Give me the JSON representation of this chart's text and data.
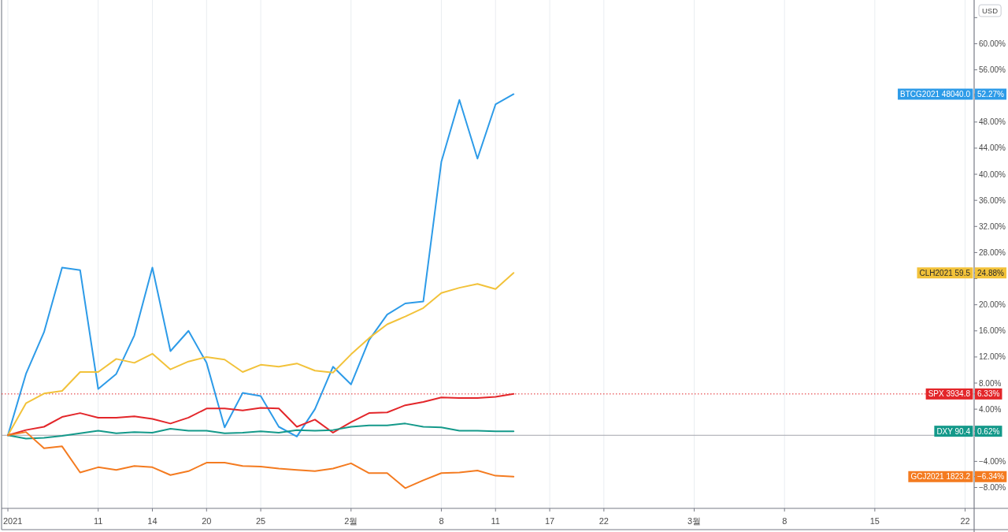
{
  "chart_data": {
    "type": "line",
    "ylabel": "USD",
    "grid": "x",
    "legend": "right",
    "categories": [
      "2021",
      null,
      null,
      null,
      null,
      "11",
      null,
      null,
      "14",
      null,
      null,
      "20",
      null,
      null,
      "25",
      null,
      null,
      null,
      null,
      "2월",
      null,
      null,
      null,
      null,
      "8",
      null,
      null,
      "11",
      null,
      null,
      "17",
      null,
      null,
      "22",
      null,
      null,
      null,
      null,
      "3월",
      null,
      null,
      null,
      null,
      "8",
      null,
      null,
      null,
      null,
      "15",
      null,
      null,
      null,
      null,
      "22"
    ],
    "ylim": [
      -11.2,
      66.7
    ],
    "yticks": [
      {
        "value": -8,
        "label": "−8.00%"
      },
      {
        "value": -6.34,
        "label": "−6.34%"
      },
      {
        "value": -4,
        "label": "−4.00%"
      },
      {
        "value": 0,
        "label": null
      },
      {
        "value": 0.62,
        "label": "0.62%"
      },
      {
        "value": 4,
        "label": "4.00%"
      },
      {
        "value": 6.33,
        "label": "6.33%"
      },
      {
        "value": 8,
        "label": "8.00%"
      },
      {
        "value": 12,
        "label": "12.00%"
      },
      {
        "value": 16,
        "label": "16.00%"
      },
      {
        "value": 20,
        "label": "20.00%"
      },
      {
        "value": 24,
        "label": null
      },
      {
        "value": 24.88,
        "label": "24.88%"
      },
      {
        "value": 28,
        "label": "28.00%"
      },
      {
        "value": 32,
        "label": "32.00%"
      },
      {
        "value": 36,
        "label": "36.00%"
      },
      {
        "value": 40,
        "label": "40.00%"
      },
      {
        "value": 44,
        "label": "44.00%"
      },
      {
        "value": 48,
        "label": "48.00%"
      },
      {
        "value": 52,
        "label": null
      },
      {
        "value": 52.27,
        "label": "52.27%"
      },
      {
        "value": 56,
        "label": "56.00%"
      },
      {
        "value": 60,
        "label": "60.00%"
      },
      {
        "value": 64,
        "label": null
      }
    ],
    "ref_lines": [
      {
        "axis": "y",
        "value": 0,
        "color": "#a3a6ad",
        "line_style": "solid"
      },
      {
        "axis": "y",
        "value": 6.33,
        "color": "#e3262a",
        "line_style": "dotted"
      }
    ],
    "series": [
      {
        "name": "BTCG2021 48040.0",
        "color": "#2d9be8",
        "values": [
          0,
          9.4,
          15.8,
          25.7,
          25.3,
          7.1,
          9.4,
          15.3,
          25.7,
          12.9,
          16.0,
          11.1,
          1.2,
          6.5,
          6.0,
          1.3,
          -0.2,
          4.0,
          10.5,
          7.8,
          14.6,
          18.5,
          20.2,
          20.5,
          41.9,
          51.4,
          42.4,
          50.7,
          52.27,
          null,
          null,
          null,
          null,
          null,
          null,
          null,
          null,
          null,
          null,
          null,
          null,
          null,
          null,
          null,
          null,
          null,
          null,
          null,
          null,
          null,
          null,
          null,
          null,
          null
        ]
      },
      {
        "name": "CLH2021 59.5",
        "color": "#f2c23a",
        "values": [
          0,
          4.9,
          6.4,
          6.8,
          9.7,
          9.7,
          11.7,
          11.1,
          12.5,
          10.1,
          11.3,
          12.0,
          11.6,
          9.7,
          10.8,
          10.5,
          11.0,
          9.9,
          9.6,
          12.4,
          14.9,
          17.0,
          18.2,
          19.5,
          21.8,
          22.6,
          23.2,
          22.4,
          24.88,
          null,
          null,
          null,
          null,
          null,
          null,
          null,
          null,
          null,
          null,
          null,
          null,
          null,
          null,
          null,
          null,
          null,
          null,
          null,
          null,
          null,
          null,
          null,
          null,
          null
        ]
      },
      {
        "name": "SPX 3934.8",
        "color": "#e3262a",
        "values": [
          0,
          0.8,
          1.3,
          2.8,
          3.4,
          2.7,
          2.7,
          2.9,
          2.5,
          1.8,
          2.7,
          4.1,
          4.1,
          3.8,
          4.2,
          4.1,
          1.3,
          2.4,
          0.4,
          2.0,
          3.4,
          3.5,
          4.6,
          5.1,
          5.8,
          5.7,
          5.7,
          5.9,
          6.33,
          null,
          null,
          null,
          null,
          null,
          null,
          null,
          null,
          null,
          null,
          null,
          null,
          null,
          null,
          null,
          null,
          null,
          null,
          null,
          null,
          null,
          null,
          null,
          null,
          null
        ]
      },
      {
        "name": "DXY 90.4",
        "color": "#14998a",
        "values": [
          0,
          -0.5,
          -0.4,
          -0.1,
          0.3,
          0.7,
          0.3,
          0.5,
          0.4,
          1.0,
          0.7,
          0.7,
          0.3,
          0.4,
          0.6,
          0.4,
          0.8,
          0.7,
          0.8,
          1.3,
          1.5,
          1.5,
          1.8,
          1.3,
          1.2,
          0.7,
          0.7,
          0.6,
          0.62,
          null,
          null,
          null,
          null,
          null,
          null,
          null,
          null,
          null,
          null,
          null,
          null,
          null,
          null,
          null,
          null,
          null,
          null,
          null,
          null,
          null,
          null,
          null,
          null,
          null
        ]
      },
      {
        "name": "GCJ2021 1823.2",
        "color": "#f47b20",
        "values": [
          0,
          0.5,
          -2.0,
          -1.7,
          -5.7,
          -4.9,
          -5.3,
          -4.7,
          -4.9,
          -6.1,
          -5.5,
          -4.2,
          -4.2,
          -4.7,
          -4.8,
          -5.1,
          -5.3,
          -5.5,
          -5.1,
          -4.3,
          -5.8,
          -5.8,
          -8.1,
          -6.9,
          -5.8,
          -5.7,
          -5.4,
          -6.2,
          -6.34,
          null,
          null,
          null,
          null,
          null,
          null,
          null,
          null,
          null,
          null,
          null,
          null,
          null,
          null,
          null,
          null,
          null,
          null,
          null,
          null,
          null,
          null,
          null,
          null,
          null
        ]
      }
    ]
  }
}
